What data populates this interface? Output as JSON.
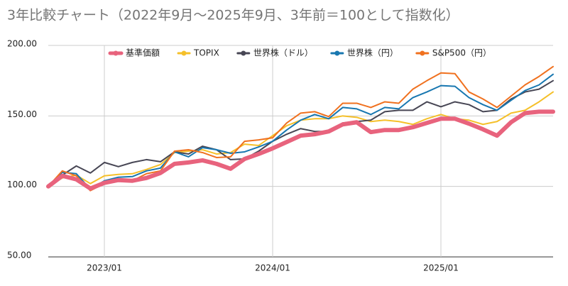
{
  "chart_data": {
    "type": "line",
    "title": "3年比較チャート（2022年9月～2025年9月、3年前＝100として指数化）",
    "categories": [
      null,
      null,
      null,
      null,
      "2023/01",
      null,
      null,
      null,
      null,
      null,
      null,
      null,
      null,
      null,
      null,
      null,
      "2024/01",
      null,
      null,
      null,
      null,
      null,
      null,
      null,
      null,
      null,
      null,
      null,
      "2025/01",
      null,
      null,
      null,
      null,
      null,
      null,
      null,
      null
    ],
    "series": [
      {
        "name": "基準価額",
        "color": "#e8637d",
        "values": [
          100,
          107.5,
          105,
          98.5,
          102.5,
          104.5,
          104,
          106,
          109.5,
          116,
          117,
          118.5,
          116,
          112.5,
          119.5,
          123,
          127,
          131.5,
          136,
          137,
          139,
          144,
          145.5,
          138.5,
          140,
          140,
          142,
          145,
          148,
          148,
          144.5,
          140.5,
          136,
          145.5,
          152,
          153,
          153
        ]
      },
      {
        "name": "TOPIX",
        "color": "#f5c02a",
        "values": [
          100,
          106,
          108,
          102,
          107.5,
          108.5,
          109,
          112,
          115.5,
          124,
          125,
          126,
          123,
          124,
          130,
          129,
          136,
          143,
          147,
          148,
          148,
          150,
          149,
          146,
          147,
          146,
          144,
          148,
          151,
          148,
          147,
          144,
          146,
          152,
          154,
          160,
          167
        ]
      },
      {
        "name": "世界株（ドル）",
        "color": "#474654",
        "values": [
          100,
          108,
          114.5,
          109.5,
          117,
          114,
          117,
          119,
          117.5,
          124.5,
          123,
          128.5,
          126,
          119,
          119.5,
          125,
          132,
          137,
          141,
          139,
          139,
          145,
          146,
          147,
          153,
          154,
          154,
          160,
          156.5,
          160,
          158,
          153,
          154,
          162,
          167,
          169,
          175
        ]
      },
      {
        "name": "世界株（円）",
        "color": "#1877b0",
        "values": [
          100,
          110,
          109,
          98,
          104,
          106.5,
          107,
          111,
          113,
          124.5,
          121,
          127.5,
          126,
          123.5,
          124.5,
          128,
          132,
          140,
          147,
          151,
          148,
          156,
          155,
          151,
          156,
          155,
          163,
          167,
          171.5,
          171,
          163,
          158,
          154,
          161,
          168,
          172,
          179.5
        ]
      },
      {
        "name": "S&P500（円）",
        "color": "#f0711f",
        "values": [
          100,
          111,
          107.5,
          97,
          102,
          104.5,
          104,
          109,
          111,
          125,
          126,
          124,
          120.5,
          121,
          132,
          133,
          134.5,
          145,
          152,
          153,
          149.5,
          159,
          159,
          156,
          160,
          159,
          169,
          175,
          180.5,
          180,
          167,
          162,
          156,
          164,
          172,
          178,
          185
        ]
      }
    ],
    "ylim": [
      50,
      200
    ],
    "yticks": [
      {
        "value": 50,
        "label": "50.00"
      },
      {
        "value": 100,
        "label": "100.00"
      },
      {
        "value": 150,
        "label": "150.00"
      },
      {
        "value": 200,
        "label": "200.00"
      }
    ],
    "grid": true,
    "legend": "top"
  }
}
